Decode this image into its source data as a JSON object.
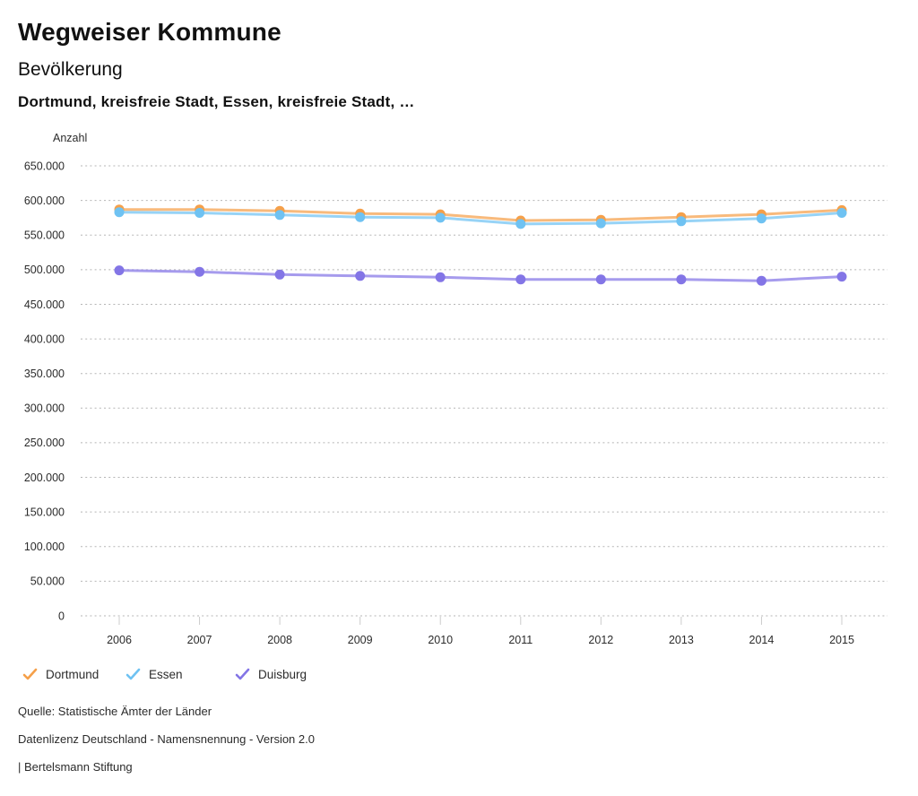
{
  "header": {
    "title": "Wegweiser Kommune",
    "subtitle": "Bevölkerung",
    "selection": "Dortmund, kreisfreie Stadt, Essen, kreisfreie Stadt, …"
  },
  "chart_data": {
    "type": "line",
    "title": "Bevölkerung",
    "ylabel": "Anzahl",
    "xlabel": "",
    "x": [
      2006,
      2007,
      2008,
      2009,
      2010,
      2011,
      2012,
      2013,
      2014,
      2015
    ],
    "xtick_labels": [
      "2006",
      "2007",
      "2008",
      "2009",
      "2010",
      "2011",
      "2012",
      "2013",
      "2014",
      "2015"
    ],
    "series": [
      {
        "name": "Dortmund",
        "color": "#F5A04A",
        "values": [
          587000,
          587000,
          585000,
          581000,
          580000,
          571000,
          572000,
          576000,
          580000,
          586000
        ]
      },
      {
        "name": "Essen",
        "color": "#6FC2F2",
        "values": [
          583000,
          582000,
          579000,
          576000,
          575000,
          566000,
          567000,
          570000,
          574000,
          582000
        ]
      },
      {
        "name": "Duisburg",
        "color": "#8375E6",
        "values": [
          499000,
          497000,
          493000,
          491000,
          489000,
          486000,
          486000,
          486000,
          484000,
          490000
        ]
      }
    ],
    "ylim": [
      0,
      650000
    ],
    "ytick_step": 50000,
    "ytick_labels": [
      "650.000",
      "600.000",
      "550.000",
      "500.000",
      "450.000",
      "400.000",
      "350.000",
      "300.000",
      "250.000",
      "200.000",
      "150.000",
      "100.000",
      "50.000",
      "0"
    ],
    "grid": "horizontal-dotted",
    "legend_position": "bottom-left",
    "colors": {
      "grid": "#b5b5b5",
      "tick": "#cccccc",
      "axis_text": "#2b2b2b"
    },
    "marker": "circle",
    "legend_icon": "check-icon"
  },
  "footer": {
    "source": "Quelle: Statistische Ämter der Länder",
    "license": "Datenlizenz Deutschland - Namensnennung - Version 2.0",
    "attribution": "| Bertelsmann Stiftung"
  }
}
